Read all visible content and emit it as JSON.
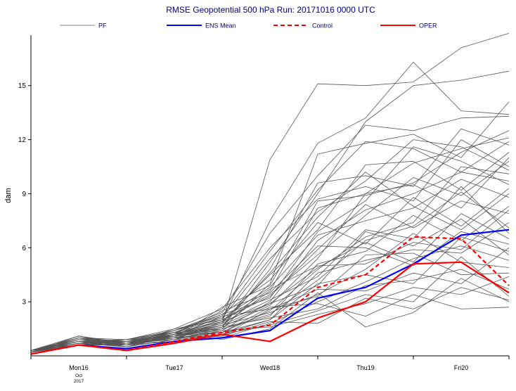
{
  "chart_data": {
    "type": "line",
    "title": "RMSE Geopotential 500 hPa Run: 20171016 0000 UTC",
    "ylabel": "dam",
    "xlabel": "",
    "ylim": [
      0,
      17.8
    ],
    "xlim": [
      0,
      120
    ],
    "y_ticks": [
      3,
      6,
      9,
      12,
      15
    ],
    "x_ticks": [
      {
        "x": 12,
        "label": "Mon16",
        "sublabel": [
          "Oct",
          "2017"
        ]
      },
      {
        "x": 36,
        "label": "Tue17",
        "sublabel": []
      },
      {
        "x": 60,
        "label": "Wed18",
        "sublabel": []
      },
      {
        "x": 84,
        "label": "Thu19",
        "sublabel": []
      },
      {
        "x": 108,
        "label": "Fri20",
        "sublabel": []
      }
    ],
    "x_gridlines": [
      0,
      24,
      48,
      72,
      96,
      120
    ],
    "grid": false,
    "legend_position": "top",
    "legend": [
      {
        "key": "pf",
        "label": "PF",
        "color": "#555555",
        "dash": "",
        "width": 0.8
      },
      {
        "key": "ens_mean",
        "label": "ENS Mean",
        "color": "#0000ff",
        "dash": "",
        "width": 2
      },
      {
        "key": "control",
        "label": "Control",
        "color": "#ff0000",
        "dash": "6,4",
        "width": 2
      },
      {
        "key": "oper",
        "label": "OPER",
        "color": "#ff0000",
        "dash": "",
        "width": 2
      }
    ],
    "x": [
      0,
      12,
      24,
      36,
      48,
      60,
      72,
      84,
      96,
      108,
      120
    ],
    "series": [
      {
        "name": "ENS Mean",
        "style": "ens_mean",
        "values": [
          0.1,
          0.6,
          0.4,
          0.8,
          1.0,
          1.4,
          3.2,
          3.8,
          5.1,
          6.7,
          7.0
        ]
      },
      {
        "name": "Control",
        "style": "control",
        "values": [
          0.1,
          0.6,
          0.3,
          0.8,
          1.3,
          1.7,
          3.8,
          4.5,
          6.6,
          6.5,
          3.9
        ]
      },
      {
        "name": "OPER",
        "style": "oper",
        "values": [
          0.1,
          0.6,
          0.3,
          0.7,
          1.2,
          0.8,
          2.1,
          3.0,
          5.1,
          5.2,
          3.5
        ]
      }
    ],
    "pf_members": [
      [
        0.2,
        0.8,
        0.7,
        1.0,
        1.6,
        5.2,
        9.0,
        13.0,
        15.0,
        15.3,
        15.8
      ],
      [
        0.2,
        1.0,
        0.6,
        1.2,
        1.8,
        10.9,
        15.1,
        15.0,
        15.2,
        17.1,
        17.9
      ],
      [
        0.3,
        0.9,
        0.8,
        1.2,
        2.0,
        7.5,
        11.8,
        13.2,
        16.3,
        13.6,
        13.4
      ],
      [
        0.2,
        1.1,
        0.7,
        1.4,
        2.4,
        6.8,
        10.0,
        12.8,
        12.5,
        13.2,
        13.3
      ],
      [
        0.2,
        0.7,
        0.9,
        1.3,
        1.5,
        4.0,
        11.2,
        11.8,
        12.3,
        11.0,
        14.1
      ],
      [
        0.3,
        0.8,
        0.6,
        1.1,
        2.2,
        5.8,
        9.2,
        11.9,
        11.5,
        10.2,
        11.9
      ],
      [
        0.2,
        0.9,
        0.8,
        1.0,
        1.7,
        3.6,
        8.2,
        9.0,
        10.7,
        11.5,
        12.1
      ],
      [
        0.2,
        0.6,
        0.7,
        1.2,
        1.9,
        4.5,
        7.0,
        10.6,
        10.8,
        9.2,
        11.3
      ],
      [
        0.3,
        1.0,
        0.9,
        1.5,
        2.6,
        6.0,
        8.7,
        9.4,
        8.6,
        12.0,
        10.5
      ],
      [
        0.2,
        0.8,
        0.5,
        0.9,
        1.4,
        3.0,
        6.4,
        8.1,
        9.0,
        10.2,
        9.7
      ],
      [
        0.2,
        0.7,
        0.8,
        1.1,
        1.6,
        2.8,
        5.4,
        9.0,
        9.5,
        8.2,
        11.0
      ],
      [
        0.3,
        0.9,
        0.7,
        1.3,
        2.1,
        3.8,
        6.7,
        7.5,
        8.2,
        9.8,
        8.8
      ],
      [
        0.2,
        0.6,
        0.6,
        1.0,
        1.3,
        2.5,
        4.8,
        6.6,
        7.4,
        10.5,
        10.1
      ],
      [
        0.2,
        1.0,
        0.8,
        1.2,
        2.0,
        3.3,
        5.9,
        8.4,
        7.1,
        8.6,
        7.9
      ],
      [
        0.3,
        0.8,
        0.9,
        1.4,
        2.3,
        4.2,
        7.4,
        6.2,
        8.8,
        7.2,
        9.3
      ],
      [
        0.2,
        0.7,
        0.5,
        1.1,
        1.8,
        3.1,
        4.4,
        7.0,
        6.5,
        9.4,
        6.8
      ],
      [
        0.2,
        0.9,
        0.7,
        0.9,
        1.5,
        2.2,
        5.1,
        5.8,
        7.8,
        6.4,
        8.3
      ],
      [
        0.3,
        0.6,
        0.8,
        1.3,
        1.9,
        2.9,
        3.9,
        6.9,
        6.1,
        7.6,
        5.6
      ],
      [
        0.2,
        1.1,
        0.6,
        1.0,
        1.2,
        2.0,
        4.6,
        5.3,
        5.9,
        5.7,
        7.4
      ],
      [
        0.2,
        0.8,
        0.7,
        1.2,
        2.5,
        3.5,
        6.1,
        6.0,
        5.0,
        6.9,
        6.2
      ],
      [
        0.3,
        0.7,
        0.9,
        1.1,
        1.7,
        2.4,
        3.4,
        4.8,
        6.8,
        5.2,
        4.9
      ],
      [
        0.2,
        0.9,
        0.6,
        0.8,
        1.0,
        1.8,
        3.0,
        4.1,
        5.4,
        6.1,
        5.3
      ],
      [
        0.2,
        0.6,
        0.8,
        1.4,
        2.2,
        2.6,
        3.7,
        3.6,
        4.6,
        4.0,
        6.0
      ],
      [
        0.3,
        1.0,
        0.7,
        1.0,
        1.6,
        2.1,
        2.6,
        3.9,
        4.2,
        4.8,
        3.7
      ],
      [
        0.2,
        0.8,
        0.5,
        1.2,
        1.4,
        1.6,
        2.3,
        2.9,
        3.8,
        3.4,
        4.4
      ],
      [
        0.2,
        0.7,
        0.8,
        0.9,
        1.1,
        1.9,
        1.8,
        3.2,
        2.6,
        3.8,
        3.1
      ],
      [
        0.3,
        0.9,
        0.6,
        1.1,
        1.3,
        2.7,
        2.9,
        2.2,
        3.4,
        2.6,
        2.7
      ],
      [
        0.2,
        0.6,
        0.9,
        1.3,
        0.9,
        1.5,
        3.5,
        1.6,
        2.4,
        4.3,
        3.0
      ],
      [
        0.2,
        1.0,
        0.7,
        1.0,
        2.7,
        3.9,
        8.6,
        8.9,
        9.6,
        11.3,
        12.5
      ],
      [
        0.3,
        0.8,
        0.8,
        1.2,
        1.8,
        4.6,
        7.7,
        10.2,
        8.3,
        7.0,
        9.0
      ],
      [
        0.2,
        0.7,
        0.6,
        1.5,
        2.0,
        3.4,
        5.6,
        7.8,
        9.9,
        8.9,
        10.8
      ],
      [
        0.2,
        0.9,
        0.7,
        1.1,
        1.5,
        2.3,
        4.2,
        6.4,
        7.2,
        9.1,
        7.1
      ],
      [
        0.3,
        0.6,
        0.8,
        0.9,
        1.9,
        3.7,
        5.0,
        5.1,
        6.3,
        5.9,
        8.1
      ],
      [
        0.2,
        1.0,
        0.5,
        1.2,
        1.3,
        2.0,
        4.0,
        4.5,
        4.0,
        6.6,
        5.8
      ],
      [
        0.2,
        0.8,
        0.9,
        1.0,
        1.1,
        2.6,
        3.3,
        5.6,
        5.7,
        4.5,
        4.6
      ],
      [
        0.3,
        0.7,
        0.6,
        1.3,
        2.3,
        3.2,
        6.9,
        8.6,
        11.6,
        10.8,
        9.5
      ],
      [
        0.2,
        0.9,
        0.8,
        1.1,
        1.6,
        4.8,
        9.6,
        10.0,
        9.4,
        12.6,
        11.7
      ],
      [
        0.2,
        0.6,
        0.7,
        1.4,
        2.1,
        5.4,
        8.0,
        9.7,
        12.0,
        11.6,
        10.3
      ],
      [
        0.3,
        1.1,
        0.7,
        0.8,
        1.2,
        1.7,
        2.5,
        3.4,
        3.0,
        5.5,
        3.3
      ],
      [
        0.2,
        0.7,
        0.8,
        1.2,
        1.7,
        2.9,
        4.9,
        6.3,
        5.2,
        7.9,
        6.5
      ]
    ]
  }
}
